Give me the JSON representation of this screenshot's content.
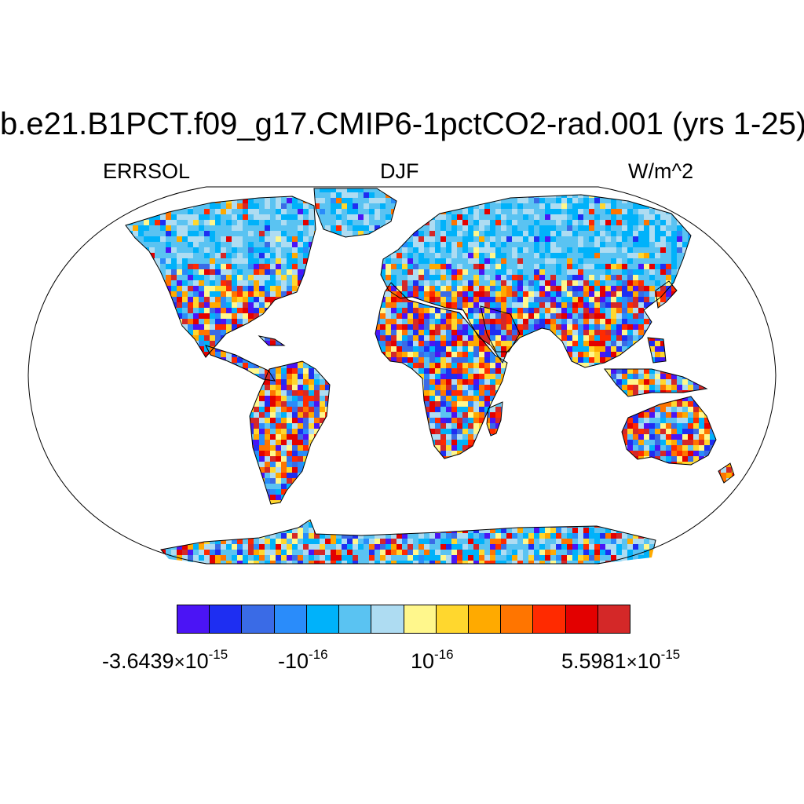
{
  "title": "b.e21.B1PCT.f09_g17.CMIP6-1pctCO2-rad.001 (yrs 1-25)",
  "left_label": "ERRSOL",
  "center_label": "DJF",
  "right_label": "W/m^2",
  "colorbar": {
    "colors": [
      "#4B14F5",
      "#1E2EF2",
      "#3A6BE6",
      "#2A8CFA",
      "#00B2FA",
      "#5AC3F2",
      "#AEDCF2",
      "#FFF78C",
      "#FFD72E",
      "#FFAA00",
      "#FF7500",
      "#FF2A00",
      "#E30000",
      "#D42828"
    ],
    "labels": [
      {
        "mantissa": "-3.6439",
        "times": "×",
        "base": "10",
        "exp": "-15"
      },
      {
        "mantissa": "",
        "times": "",
        "base": "-10",
        "exp": "-16"
      },
      {
        "mantissa": "",
        "times": "",
        "base": "10",
        "exp": "-16"
      },
      {
        "mantissa": "5.5981",
        "times": "×",
        "base": "10",
        "exp": "-15"
      }
    ]
  },
  "map": {
    "projection": "robinson",
    "field_pattern": "noisy",
    "land_colors": {
      "high_latitude": "light-blue",
      "tropics_midlatitude": "mixed-warm-cool",
      "antarctica": "mixed-cool"
    }
  }
}
